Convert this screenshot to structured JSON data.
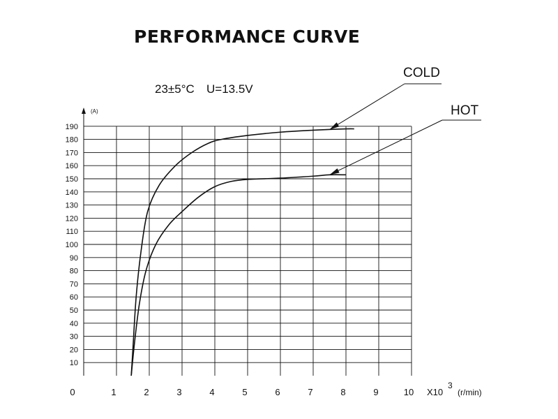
{
  "page": {
    "title": "PERFORMANCE CURVE",
    "temperature": "23±5°C",
    "voltage": "U=13.5V"
  },
  "chart_data": {
    "type": "line",
    "title": "PERFORMANCE CURVE",
    "ylabel": "(A)",
    "xlabel": "X10",
    "xlabel_exponent": "3",
    "xunit": "(r/min)",
    "xlim": [
      0,
      10
    ],
    "ylim": [
      0,
      190
    ],
    "x_ticks": [
      "0",
      "1",
      "2",
      "3",
      "4",
      "5",
      "6",
      "7",
      "8",
      "9",
      "10"
    ],
    "y_ticks": [
      "10",
      "20",
      "30",
      "40",
      "50",
      "60",
      "70",
      "80",
      "90",
      "100",
      "110",
      "120",
      "130",
      "140",
      "150",
      "160",
      "170",
      "180",
      "190"
    ],
    "grid": true,
    "series": [
      {
        "name": "COLD",
        "color": "#111111",
        "points": [
          [
            1.45,
            0
          ],
          [
            1.5,
            20
          ],
          [
            1.6,
            60
          ],
          [
            1.75,
            95
          ],
          [
            1.95,
            125
          ],
          [
            2.3,
            145
          ],
          [
            2.8,
            160
          ],
          [
            3.3,
            170
          ],
          [
            3.8,
            177
          ],
          [
            4.2,
            180
          ],
          [
            5,
            183
          ],
          [
            6,
            185.5
          ],
          [
            7,
            187
          ],
          [
            8,
            188
          ],
          [
            8.25,
            188
          ]
        ]
      },
      {
        "name": "HOT",
        "color": "#111111",
        "points": [
          [
            1.45,
            0
          ],
          [
            1.55,
            25
          ],
          [
            1.7,
            55
          ],
          [
            1.9,
            80
          ],
          [
            2.2,
            100
          ],
          [
            2.6,
            115
          ],
          [
            3.0,
            125
          ],
          [
            3.5,
            136
          ],
          [
            4.0,
            144
          ],
          [
            4.5,
            148
          ],
          [
            5,
            149.5
          ],
          [
            6,
            150.5
          ],
          [
            7,
            152
          ],
          [
            7.5,
            153
          ],
          [
            8.0,
            153
          ]
        ]
      }
    ]
  }
}
